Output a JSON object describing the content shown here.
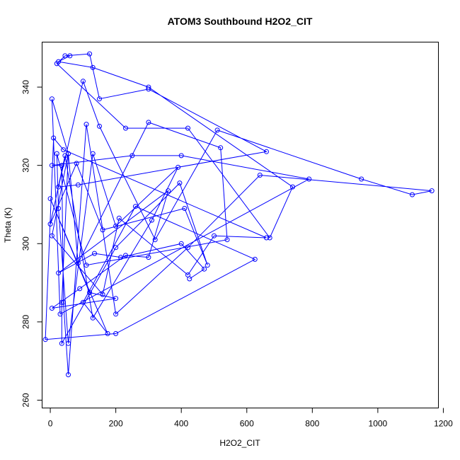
{
  "chart_data": {
    "type": "line",
    "title": "ATOM3 Southbound H2O2_CIT",
    "xlabel": "H2O2_CIT",
    "ylabel": "Theta (K)",
    "xlim": [
      -25,
      1185
    ],
    "ylim": [
      258,
      351.5
    ],
    "x_ticks": [
      0,
      200,
      400,
      600,
      800,
      1000,
      1200
    ],
    "y_ticks": [
      260,
      280,
      300,
      320,
      340
    ],
    "grid": false,
    "line_color": "#0000ff",
    "marker": "open-circle",
    "series": [
      {
        "x": [
          60,
          25,
          130,
          300,
          740,
          670,
          420,
          230,
          20,
          45,
          120,
          150,
          300,
          660,
          85,
          25,
          100,
          150,
          320,
          510,
          950,
          1105,
          1165,
          640,
          420,
          200,
          110,
          55,
          40,
          35,
          5,
          250,
          400,
          790,
          30,
          5,
          55,
          85,
          300,
          520,
          540,
          110,
          20,
          25,
          55,
          130,
          200,
          390,
          310,
          130,
          45,
          0,
          80,
          160,
          410,
          480,
          395,
          200,
          35,
          35,
          55,
          5,
          160,
          210,
          420,
          500,
          660,
          40,
          10,
          -15,
          200,
          625,
          260,
          100,
          175,
          0,
          120,
          200,
          5,
          90,
          230,
          300,
          360,
          25,
          135,
          215,
          400,
          470,
          425
        ],
        "y": [
          348,
          346.5,
          345,
          340,
          314.5,
          301.5,
          329.5,
          329.5,
          346,
          348,
          348.5,
          337,
          339.5,
          323.5,
          315,
          314.5,
          341.5,
          330,
          301,
          329,
          316.5,
          312.5,
          313.5,
          317.5,
          299,
          282,
          330.5,
          266.5,
          285,
          320,
          320,
          322.5,
          322.5,
          316.5,
          282,
          337,
          323,
          295,
          331,
          324.5,
          301,
          294.5,
          323,
          309,
          274.5,
          323,
          304.5,
          319.5,
          306,
          281,
          322.5,
          305,
          320.5,
          303.5,
          309,
          294.5,
          315.5,
          299,
          274.5,
          285,
          323,
          302,
          287,
          306.5,
          292,
          302,
          301.5,
          324,
          327,
          275.5,
          277,
          296,
          309.5,
          285,
          277,
          311.5,
          287.5,
          286,
          283.5,
          288.5,
          297,
          296.5,
          313.5,
          292.5,
          297.5,
          296.5,
          300,
          293.5,
          291
        ]
      }
    ]
  }
}
